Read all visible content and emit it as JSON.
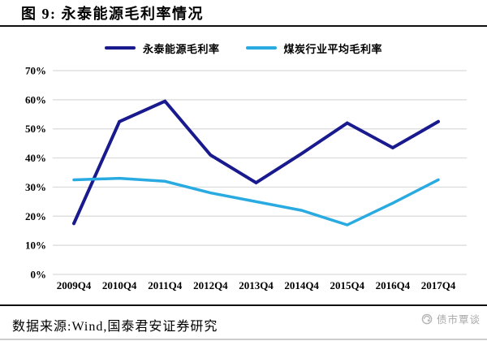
{
  "figure": {
    "title": "图 9: 永泰能源毛利率情况",
    "source": "数据来源:Wind,国泰君安证券研究",
    "watermark": "债市覃谈"
  },
  "colors": {
    "series1": "#191A8E",
    "series2": "#29ABE2",
    "gridline": "#D9D9D9",
    "rule": "#111111",
    "watermark_gray": "#A8A8A8"
  },
  "chart_data": {
    "type": "line",
    "categories": [
      "2009Q4",
      "2010Q4",
      "2011Q4",
      "2012Q4",
      "2013Q4",
      "2014Q4",
      "2015Q4",
      "2016Q4",
      "2017Q4"
    ],
    "series": [
      {
        "name": "永泰能源毛利率",
        "color": "#191A8E",
        "values": [
          17.5,
          52.5,
          59.5,
          41,
          31.5,
          41.5,
          52,
          43.5,
          52.5
        ]
      },
      {
        "name": "煤炭行业平均毛利率",
        "color": "#29ABE2",
        "values": [
          32.5,
          33,
          32,
          28,
          25,
          22,
          17,
          24.5,
          32.5
        ]
      }
    ],
    "title": "永泰能源毛利率情况",
    "xlabel": "",
    "ylabel": "",
    "ylim": [
      0,
      70
    ],
    "ytick_step": 10,
    "ytick_suffix": "%",
    "grid": "horizontal",
    "legend_position": "top"
  }
}
